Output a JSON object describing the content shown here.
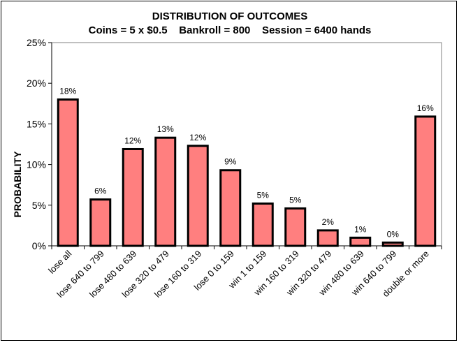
{
  "chart_data": {
    "type": "bar",
    "title": "DISTRIBUTION OF OUTCOMES",
    "subtitle": "Coins = 5 x $0.5    Bankroll = 800    Session = 6400 hands",
    "xlabel": "",
    "ylabel": "PROBABILITY",
    "ylim": [
      0,
      25
    ],
    "yticks": [
      0,
      5,
      10,
      15,
      20,
      25
    ],
    "ytick_labels": [
      "0%",
      "5%",
      "10%",
      "15%",
      "20%",
      "25%"
    ],
    "categories": [
      "lose all",
      "lose 640 to 799",
      "lose 480 to 639",
      "lose 320 to 479",
      "lose 160 to 319",
      "lose 0 to 159",
      "win 1 to 159",
      "win 160 to 319",
      "win 320 to 479",
      "win 480 to 639",
      "win 640 to 799",
      "double or more"
    ],
    "values": [
      18.0,
      5.7,
      11.9,
      13.3,
      12.3,
      9.3,
      5.2,
      4.6,
      1.9,
      1.0,
      0.4,
      15.9
    ],
    "data_labels": [
      "18%",
      "6%",
      "12%",
      "13%",
      "12%",
      "9%",
      "5%",
      "5%",
      "2%",
      "1%",
      "0%",
      "16%"
    ],
    "bar_color": "#FF7F7F",
    "bar_edge_color": "#000000",
    "plot_border_color": "#808080",
    "grid": false,
    "legend": "none"
  }
}
